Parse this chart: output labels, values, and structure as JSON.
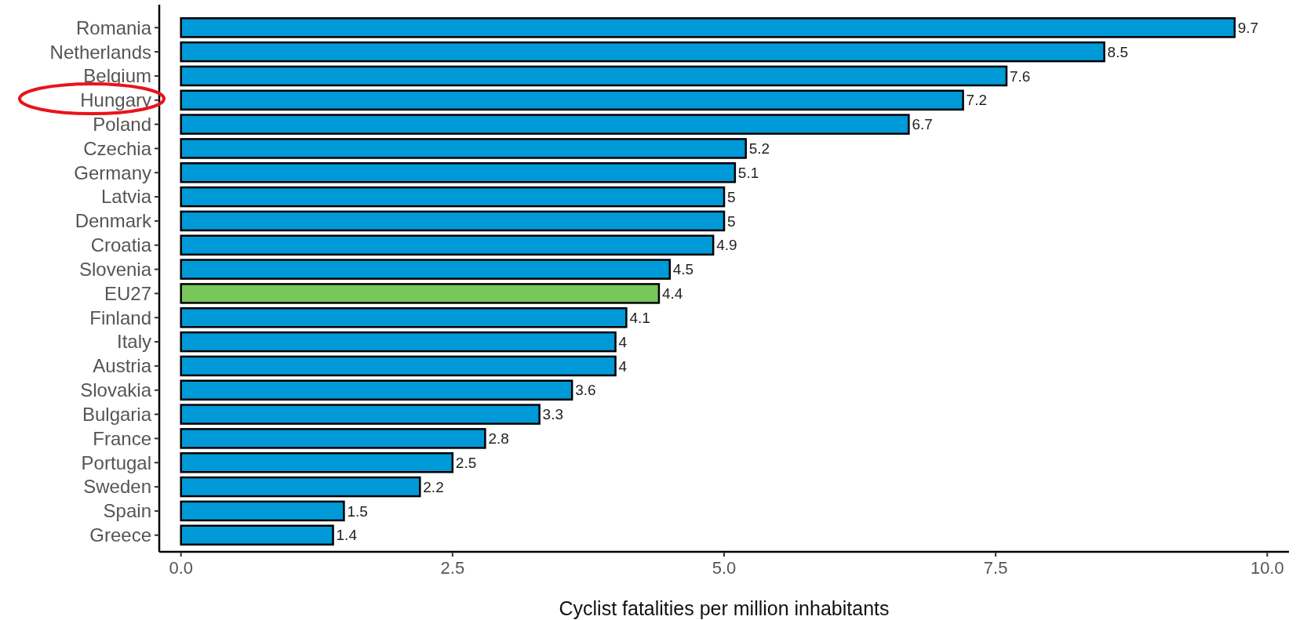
{
  "chart_data": {
    "type": "bar",
    "orientation": "horizontal",
    "xlabel": "Cyclist fatalities per million inhabitants",
    "categories": [
      "Romania",
      "Netherlands",
      "Belgium",
      "Hungary",
      "Poland",
      "Czechia",
      "Germany",
      "Latvia",
      "Denmark",
      "Croatia",
      "Slovenia",
      "EU27",
      "Finland",
      "Italy",
      "Austria",
      "Slovakia",
      "Bulgaria",
      "France",
      "Portugal",
      "Sweden",
      "Spain",
      "Greece"
    ],
    "values": [
      9.7,
      8.5,
      7.6,
      7.2,
      6.7,
      5.2,
      5.1,
      5,
      5,
      4.9,
      4.5,
      4.4,
      4.1,
      4,
      4,
      3.6,
      3.3,
      2.8,
      2.5,
      2.2,
      1.5,
      1.4
    ],
    "colors": [
      "#0099d8",
      "#0099d8",
      "#0099d8",
      "#0099d8",
      "#0099d8",
      "#0099d8",
      "#0099d8",
      "#0099d8",
      "#0099d8",
      "#0099d8",
      "#0099d8",
      "#77c75a",
      "#0099d8",
      "#0099d8",
      "#0099d8",
      "#0099d8",
      "#0099d8",
      "#0099d8",
      "#0099d8",
      "#0099d8",
      "#0099d8",
      "#0099d8"
    ],
    "xlim": [
      -0.2,
      10.2
    ],
    "xticks": [
      {
        "value": 0,
        "label": "0.0"
      },
      {
        "value": 2.5,
        "label": "2.5"
      },
      {
        "value": 5,
        "label": "5.0"
      },
      {
        "value": 7.5,
        "label": "7.5"
      },
      {
        "value": 10,
        "label": "10.0"
      }
    ],
    "data_labels": true,
    "grid": false
  }
}
